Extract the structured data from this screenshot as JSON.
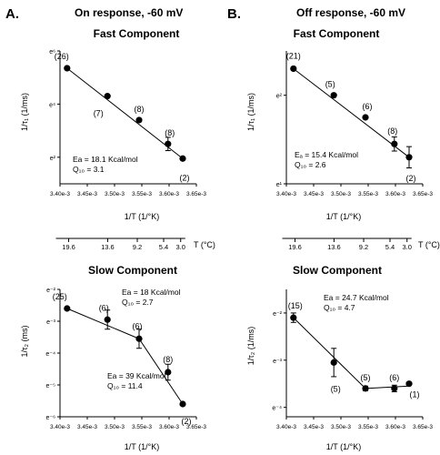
{
  "panels": [
    {
      "letter": "A.",
      "title": "On response, -60 mV"
    },
    {
      "letter": "B.",
      "title": "Off response, -60 mV"
    }
  ],
  "temperature_axes": [
    {
      "label": "T (°C)",
      "ticks": [
        {
          "value": 19.6,
          "label": "19.6"
        },
        {
          "value": 13.6,
          "label": "13.6"
        },
        {
          "value": 9.2,
          "label": "9.2"
        },
        {
          "value": 5.4,
          "label": "5.4"
        },
        {
          "value": 3.0,
          "label": "3.0"
        }
      ]
    },
    {
      "label": "T (°C)",
      "ticks": [
        {
          "value": 19.6,
          "label": "19.6"
        },
        {
          "value": 13.6,
          "label": "13.6"
        },
        {
          "value": 9.2,
          "label": "9.2"
        },
        {
          "value": 5.4,
          "label": "5.4"
        },
        {
          "value": 3.0,
          "label": "3.0"
        }
      ]
    }
  ],
  "chart_data": [
    {
      "type": "scatter",
      "panel": "A",
      "title": "Fast Component",
      "xlabel": "1/T (1/°K)",
      "ylabel": "1/τ₁ (1/ms)",
      "xlim": [
        0.0034,
        0.00365
      ],
      "ylim_ln": [
        1,
        6
      ],
      "xticks": [
        {
          "value": 0.0034,
          "label": "3.40e-3"
        },
        {
          "value": 0.00345,
          "label": "3.45e-3"
        },
        {
          "value": 0.0035,
          "label": "3.50e-3"
        },
        {
          "value": 0.00355,
          "label": "3.55e-3"
        },
        {
          "value": 0.0036,
          "label": "3.60e-3"
        },
        {
          "value": 0.00365,
          "label": "3.65e-3"
        }
      ],
      "yticks": [
        {
          "value": 2,
          "label": "e²"
        },
        {
          "value": 4,
          "label": "e⁴"
        },
        {
          "value": 6,
          "label": "e⁶"
        }
      ],
      "series": [
        {
          "points": [
            {
              "x": 0.003413,
              "y_ln": 5.35,
              "err": 0,
              "n": "(26)"
            },
            {
              "x": 0.003487,
              "y_ln": 4.3,
              "err": 0,
              "n": "(7)"
            },
            {
              "x": 0.003545,
              "y_ln": 3.4,
              "err": 0,
              "n": "(8)"
            },
            {
              "x": 0.003598,
              "y_ln": 2.5,
              "err": 0.25,
              "n": "(8)"
            },
            {
              "x": 0.003625,
              "y_ln": 1.95,
              "err": 0,
              "n": "(2)"
            }
          ]
        }
      ],
      "fits": [
        {
          "x": [
            0.003413,
            0.003625
          ],
          "y_ln": [
            5.35,
            1.95
          ]
        }
      ],
      "annotations": [
        {
          "lines": [
            "Ea = 18.1 Kcal/mol",
            "Q₁₀ = 3.1"
          ]
        }
      ]
    },
    {
      "type": "scatter",
      "panel": "B",
      "title": "Fast Component",
      "xlabel": "1/T (1/°K)",
      "ylabel": "1/τ₁ (1/ms)",
      "xlim": [
        0.0034,
        0.00365
      ],
      "ylim_ln": [
        1,
        2.5
      ],
      "xticks": [
        {
          "value": 0.0034,
          "label": "3.40e-3"
        },
        {
          "value": 0.00345,
          "label": "3.45e-3"
        },
        {
          "value": 0.0035,
          "label": "3.50e-3"
        },
        {
          "value": 0.00355,
          "label": "3.55e-3"
        },
        {
          "value": 0.0036,
          "label": "3.60e-3"
        },
        {
          "value": 0.00365,
          "label": "3.65e-3"
        }
      ],
      "yticks": [
        {
          "value": 1,
          "label": "e¹"
        },
        {
          "value": 2,
          "label": "e²"
        }
      ],
      "series": [
        {
          "points": [
            {
              "x": 0.003413,
              "y_ln": 2.3,
              "err": 0,
              "n": "(21)"
            },
            {
              "x": 0.003487,
              "y_ln": 2.0,
              "err": 0,
              "n": "(5)"
            },
            {
              "x": 0.003545,
              "y_ln": 1.75,
              "err": 0,
              "n": "(6)"
            },
            {
              "x": 0.003598,
              "y_ln": 1.45,
              "err": 0.08,
              "n": "(8)"
            },
            {
              "x": 0.003625,
              "y_ln": 1.3,
              "err": 0.12,
              "n": "(2)"
            }
          ]
        }
      ],
      "fits": [
        {
          "x": [
            0.003413,
            0.003625
          ],
          "y_ln": [
            2.3,
            1.3
          ]
        }
      ],
      "annotations": [
        {
          "lines": [
            "Eₐ = 15.4 Kcal/mol",
            "Q₁₀ = 2.6"
          ]
        }
      ]
    },
    {
      "type": "scatter",
      "panel": "A",
      "title": "Slow Component",
      "xlabel": "1/T (1/°K)",
      "ylabel": "1/τ₂ (ms)",
      "xlim": [
        0.0034,
        0.00365
      ],
      "ylim_ln": [
        -6,
        -2
      ],
      "xticks": [
        {
          "value": 0.0034,
          "label": "3.40e-3"
        },
        {
          "value": 0.00345,
          "label": "3.45e-3"
        },
        {
          "value": 0.0035,
          "label": "3.50e-3"
        },
        {
          "value": 0.00355,
          "label": "3.55e-3"
        },
        {
          "value": 0.0036,
          "label": "3.60e-3"
        },
        {
          "value": 0.00365,
          "label": "3.65e-3"
        }
      ],
      "yticks": [
        {
          "value": -2,
          "label": "e⁻²"
        },
        {
          "value": -3,
          "label": "e⁻³"
        },
        {
          "value": -4,
          "label": "e⁻⁴"
        },
        {
          "value": -5,
          "label": "e⁻⁵"
        },
        {
          "value": -6,
          "label": "e⁻⁶"
        }
      ],
      "series": [
        {
          "points": [
            {
              "x": 0.003413,
              "y_ln": -2.6,
              "err": 0,
              "n": "(25)"
            },
            {
              "x": 0.003487,
              "y_ln": -2.95,
              "err": 0.3,
              "n": "(6)"
            },
            {
              "x": 0.003545,
              "y_ln": -3.55,
              "err": 0.3,
              "n": "(6)"
            },
            {
              "x": 0.003598,
              "y_ln": -4.6,
              "err": 0.25,
              "n": "(8)"
            },
            {
              "x": 0.003625,
              "y_ln": -5.6,
              "err": 0,
              "n": "(2)"
            }
          ]
        }
      ],
      "fits": [
        {
          "x": [
            0.003413,
            0.003545
          ],
          "y_ln": [
            -2.6,
            -3.55
          ]
        },
        {
          "x": [
            0.003545,
            0.003625
          ],
          "y_ln": [
            -3.55,
            -5.6
          ]
        }
      ],
      "annotations": [
        {
          "lines": [
            "Ea = 18 Kcal/mol",
            "Q₁₀ = 2.7"
          ]
        },
        {
          "lines": [
            "Ea = 39 Kcal/mol",
            "Q₁₀ = 11.4"
          ]
        }
      ]
    },
    {
      "type": "scatter",
      "panel": "B",
      "title": "Slow Component",
      "xlabel": "1/T (1/°K)",
      "ylabel": "1/τ₂ (1/ms)",
      "xlim": [
        0.0034,
        0.00365
      ],
      "ylim_ln": [
        -4.2,
        -1.5
      ],
      "xticks": [
        {
          "value": 0.0034,
          "label": "3.40e-3"
        },
        {
          "value": 0.00345,
          "label": "3.45e-3"
        },
        {
          "value": 0.0035,
          "label": "3.50e-3"
        },
        {
          "value": 0.00355,
          "label": "3.55e-3"
        },
        {
          "value": 0.0036,
          "label": "3.60e-3"
        },
        {
          "value": 0.00365,
          "label": "3.65e-3"
        }
      ],
      "yticks": [
        {
          "value": -2,
          "label": "e⁻²"
        },
        {
          "value": -3,
          "label": "e⁻³"
        },
        {
          "value": -4,
          "label": "e⁻⁴"
        }
      ],
      "series": [
        {
          "points": [
            {
              "x": 0.003413,
              "y_ln": -2.1,
              "err": 0.1,
              "n": "(15)"
            },
            {
              "x": 0.003487,
              "y_ln": -3.05,
              "err": 0.3,
              "n": "(5)"
            },
            {
              "x": 0.003545,
              "y_ln": -3.6,
              "err": 0.05,
              "n": "(5)"
            },
            {
              "x": 0.003598,
              "y_ln": -3.6,
              "err": 0.07,
              "n": "(6)"
            },
            {
              "x": 0.003625,
              "y_ln": -3.5,
              "err": 0,
              "n": "(1)"
            }
          ]
        }
      ],
      "fits": [
        {
          "x": [
            0.003413,
            0.003545
          ],
          "y_ln": [
            -2.1,
            -3.6
          ]
        },
        {
          "x": [
            0.003545,
            0.003625
          ],
          "y_ln": [
            -3.6,
            -3.55
          ]
        }
      ],
      "annotations": [
        {
          "lines": [
            "Ea = 24.7 Kcal/mol",
            "Q₁₀ = 4.7"
          ]
        }
      ]
    }
  ]
}
